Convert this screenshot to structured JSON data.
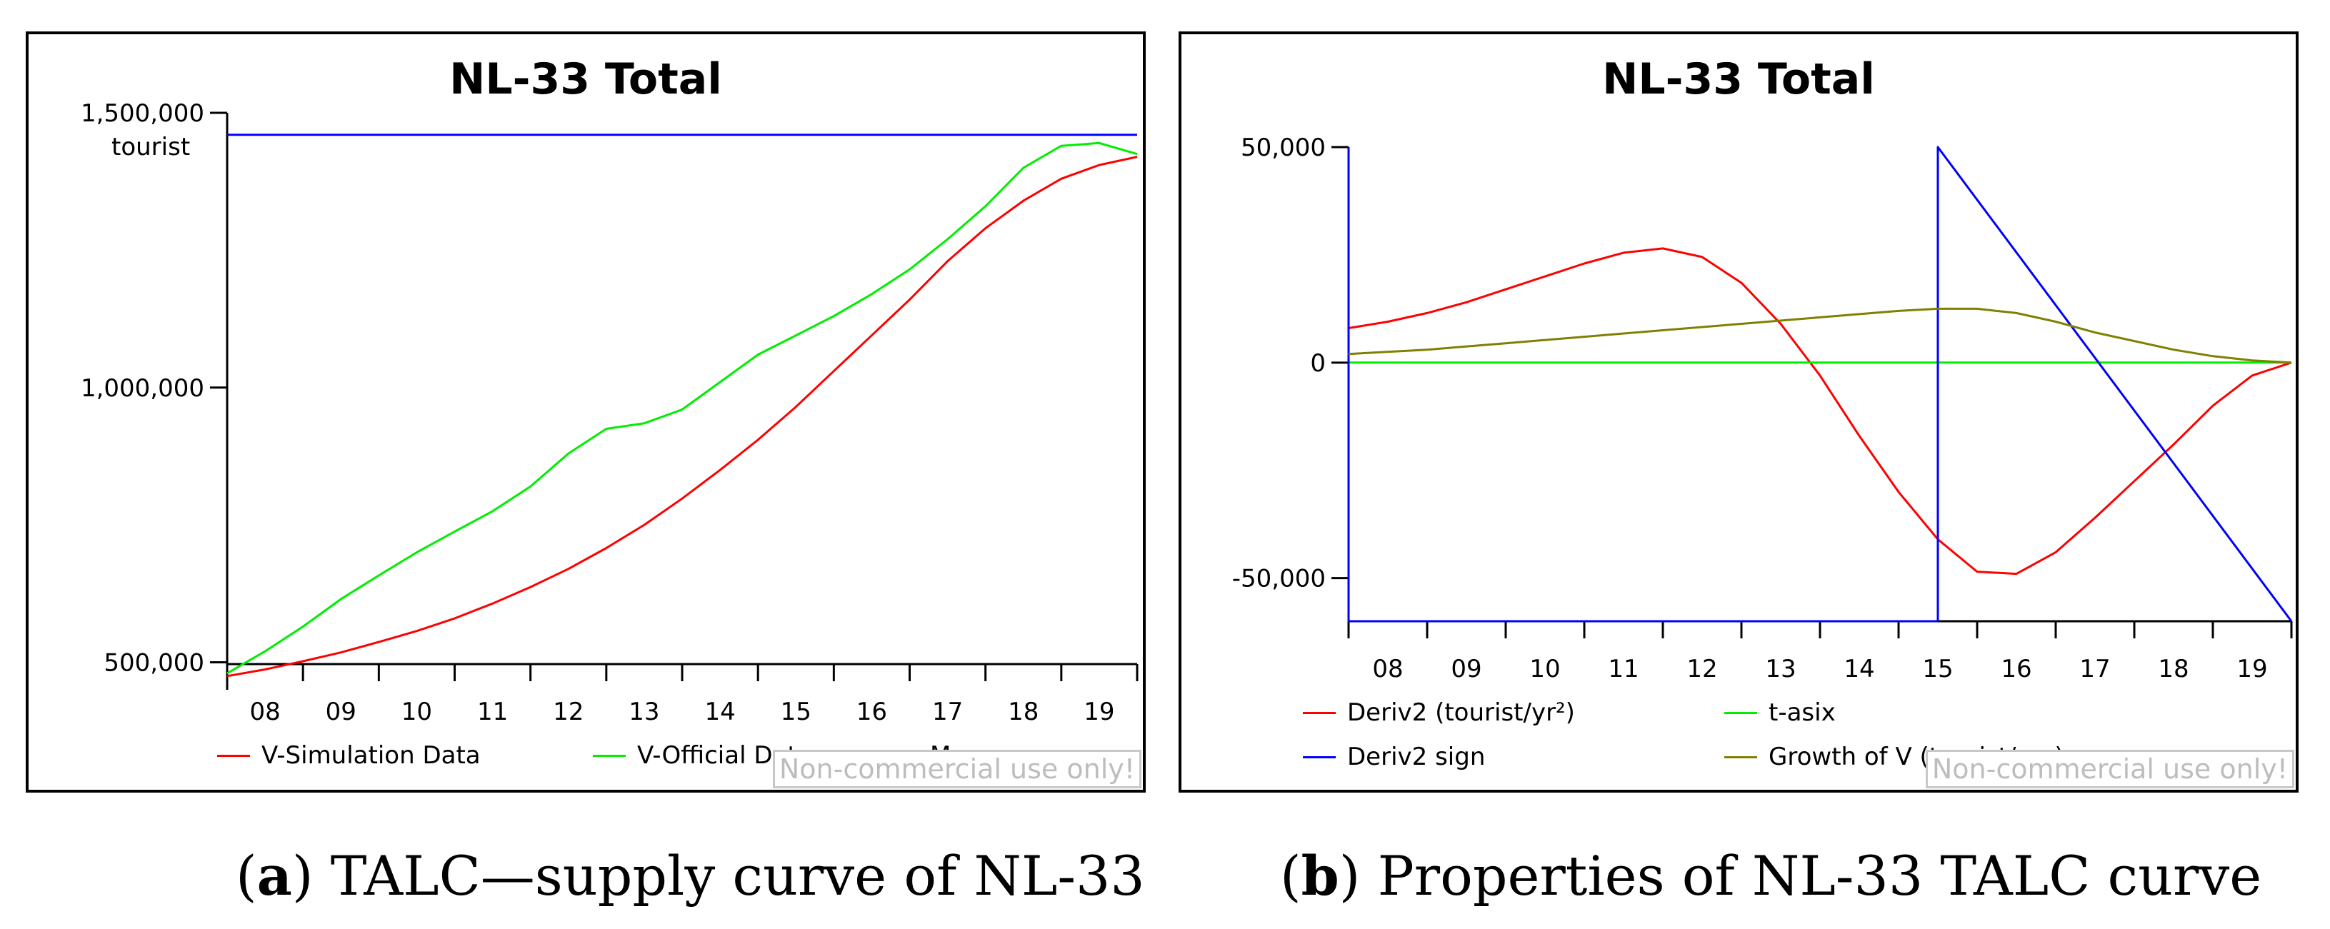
{
  "chart_data": [
    {
      "type": "line",
      "title": "NL-33 Total",
      "ylabel": "tourist",
      "xlabel": "",
      "categories": [
        "08",
        "09",
        "10",
        "11",
        "12",
        "13",
        "14",
        "15",
        "16",
        "17",
        "18",
        "19"
      ],
      "xlim": [
        0,
        12
      ],
      "ylim": [
        450000,
        1500000
      ],
      "yticks": [
        500000,
        1000000,
        1500000
      ],
      "ytick_labels": [
        "500,000",
        "1,000,000",
        "1,500,000"
      ],
      "series": [
        {
          "name": "V-Simulation Data",
          "color": "#ff0000",
          "x": [
            0,
            0.5,
            1,
            1.5,
            2,
            2.5,
            3,
            3.5,
            4,
            4.5,
            5,
            5.5,
            6,
            6.5,
            7,
            7.5,
            8,
            8.5,
            9,
            9.5,
            10,
            10.5,
            11,
            11.5,
            12
          ],
          "y": [
            475000,
            487000,
            502000,
            518000,
            537000,
            557000,
            580000,
            607000,
            637000,
            670000,
            708000,
            750000,
            798000,
            850000,
            905000,
            965000,
            1030000,
            1095000,
            1160000,
            1230000,
            1290000,
            1340000,
            1380000,
            1405000,
            1420000
          ]
        },
        {
          "name": "V-Official Data",
          "color": "#00ee00",
          "x": [
            0,
            0.5,
            1,
            1.5,
            2,
            2.5,
            3,
            3.5,
            4,
            4.5,
            5,
            5.5,
            6,
            6.5,
            7,
            7.5,
            8,
            8.5,
            9,
            9.5,
            10,
            10.5,
            11,
            11.5,
            12
          ],
          "y": [
            480000,
            520000,
            565000,
            615000,
            658000,
            700000,
            738000,
            775000,
            820000,
            880000,
            925000,
            935000,
            960000,
            1010000,
            1060000,
            1095000,
            1130000,
            1170000,
            1215000,
            1270000,
            1330000,
            1400000,
            1440000,
            1445000,
            1425000
          ]
        },
        {
          "name": "M",
          "color": "#0000ff",
          "x": [
            0,
            12
          ],
          "y": [
            1460000,
            1460000
          ]
        }
      ]
    },
    {
      "type": "line",
      "title": "NL-33 Total",
      "ylabel": "",
      "xlabel": "",
      "categories": [
        "08",
        "09",
        "10",
        "11",
        "12",
        "13",
        "14",
        "15",
        "16",
        "17",
        "18",
        "19"
      ],
      "xlim": [
        0,
        12
      ],
      "ylim": [
        -60000,
        50000
      ],
      "yticks": [
        -50000,
        0,
        50000
      ],
      "ytick_labels": [
        "-50,000",
        "0",
        "50,000"
      ],
      "series": [
        {
          "name": "Deriv2 (tourist/yr²)",
          "color": "#ff0000",
          "x": [
            0,
            0.5,
            1,
            1.5,
            2,
            2.5,
            3,
            3.5,
            4,
            4.5,
            5,
            5.5,
            6,
            6.5,
            7,
            7.5,
            8,
            8.5,
            9,
            9.5,
            10,
            10.5,
            11,
            11.5,
            12
          ],
          "y": [
            8000,
            9500,
            11500,
            14000,
            17000,
            20000,
            23000,
            25500,
            26500,
            24500,
            18500,
            9000,
            -3000,
            -17000,
            -30000,
            -41000,
            -48500,
            -49000,
            -44000,
            -36000,
            -27500,
            -19000,
            -10000,
            -3000,
            0
          ]
        },
        {
          "name": "t-asix",
          "color": "#00ee00",
          "x": [
            0,
            12
          ],
          "y": [
            0,
            0
          ]
        },
        {
          "name": "Deriv2 sign",
          "color": "#0000ff",
          "x": [
            0,
            0,
            7.5,
            7.5,
            12
          ],
          "y": [
            50000,
            -60000,
            -60000,
            50000,
            -60000
          ]
        },
        {
          "name": "Growth of V (tourist/mo)",
          "color": "#808000",
          "x": [
            0,
            1,
            2,
            3,
            4,
            5,
            6,
            7,
            7.5,
            8,
            8.5,
            9,
            9.5,
            10,
            10.5,
            11,
            11.5,
            12
          ],
          "y": [
            2000,
            3000,
            4500,
            6000,
            7500,
            9000,
            10500,
            12000,
            12500,
            12500,
            11500,
            9500,
            7000,
            5000,
            3000,
            1500,
            500,
            0
          ]
        }
      ]
    }
  ],
  "watermark": "Non-commercial use only!",
  "captions": [
    {
      "letter": "a",
      "text": "TALC—supply curve of NL-33"
    },
    {
      "letter": "b",
      "text": "Properties of NL-33 TALC curve"
    }
  ]
}
